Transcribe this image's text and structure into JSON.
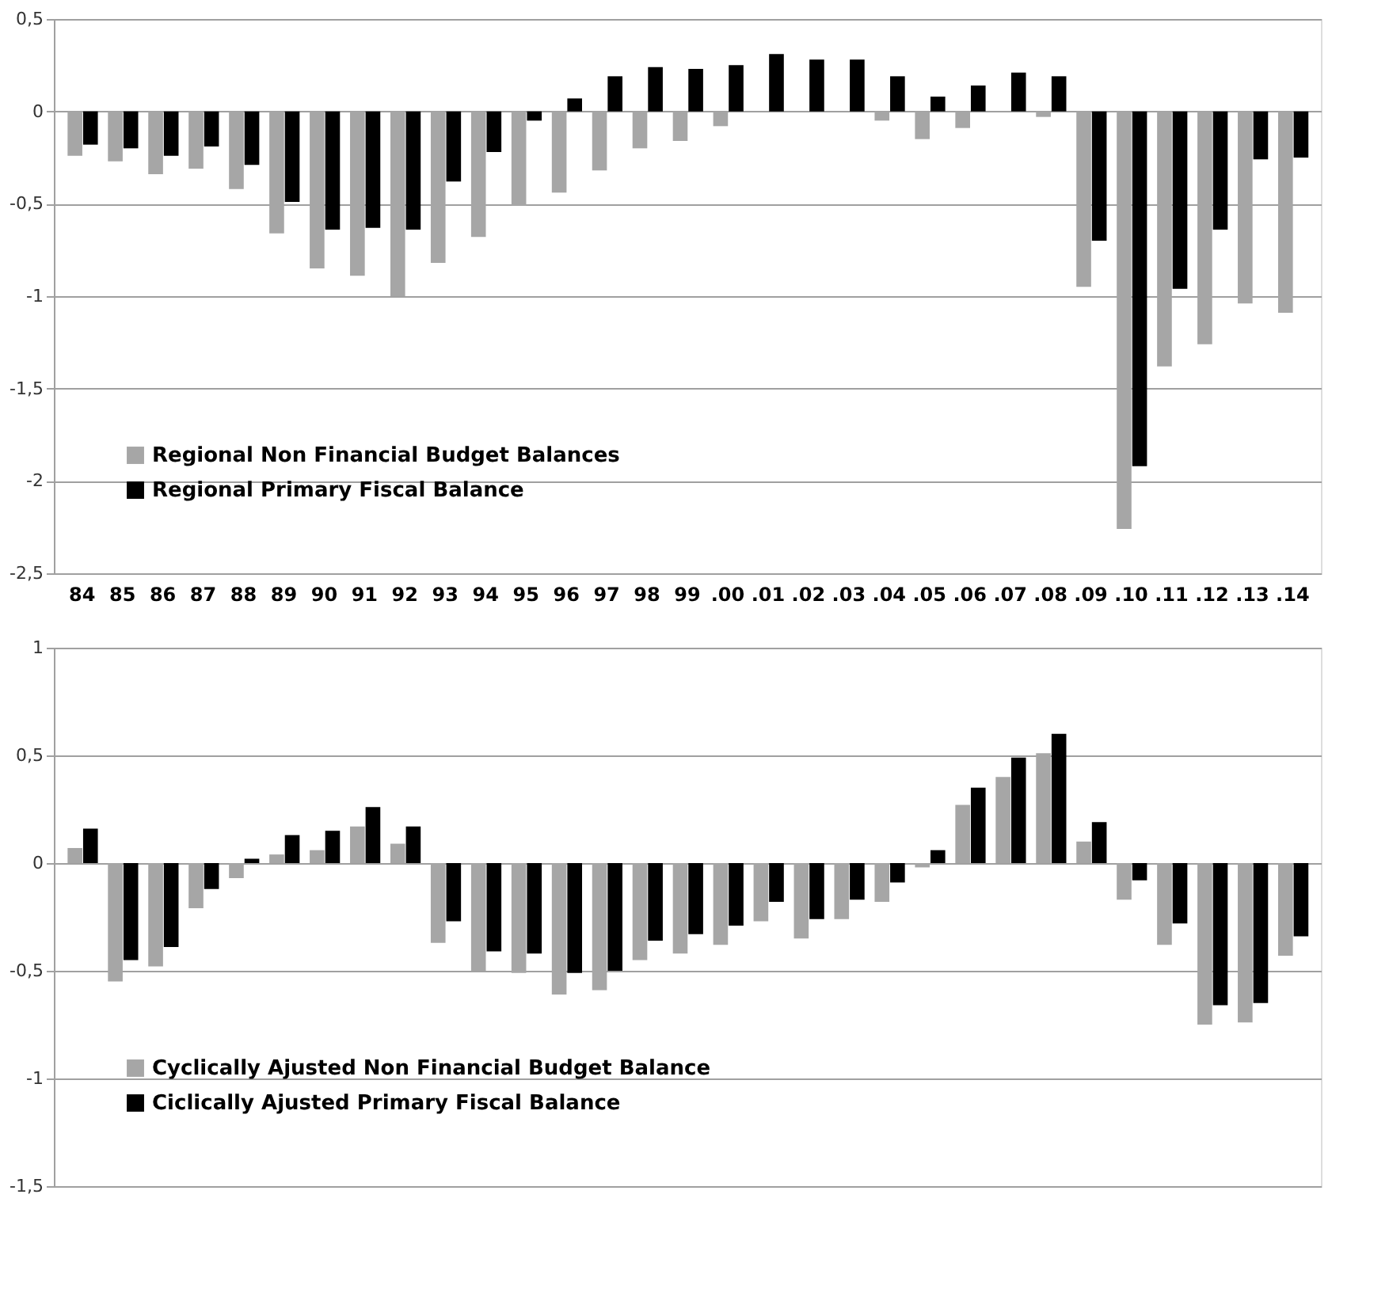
{
  "chart_data": [
    {
      "type": "bar",
      "categories": [
        "84",
        "85",
        "86",
        "87",
        "88",
        "89",
        "90",
        "91",
        "92",
        "93",
        "94",
        "95",
        "96",
        "97",
        "98",
        "99",
        ".00",
        ".01",
        ".02",
        ".03",
        ".04",
        ".05",
        ".06",
        ".07",
        ".08",
        ".09",
        ".10",
        ".11",
        ".12",
        ".13",
        ".14"
      ],
      "series": [
        {
          "name": "Regional Non Financial Budget Balances",
          "color": "#a6a6a6",
          "values": [
            -0.24,
            -0.27,
            -0.34,
            -0.31,
            -0.42,
            -0.66,
            -0.85,
            -0.89,
            -1.0,
            -0.82,
            -0.68,
            -0.51,
            -0.44,
            -0.32,
            -0.2,
            -0.16,
            -0.08,
            null,
            0,
            0,
            -0.05,
            -0.15,
            -0.09,
            null,
            -0.03,
            -0.95,
            -2.26,
            -1.38,
            -1.26,
            -1.04,
            -1.09
          ]
        },
        {
          "name": "Regional Primary Fiscal Balance",
          "color": "#000000",
          "values": [
            -0.18,
            -0.2,
            -0.24,
            -0.19,
            -0.29,
            -0.49,
            -0.64,
            -0.63,
            -0.64,
            -0.38,
            -0.22,
            -0.05,
            0.07,
            0.19,
            0.24,
            0.23,
            0.25,
            0.31,
            0.28,
            0.28,
            0.19,
            0.08,
            0.14,
            0.21,
            0.19,
            -0.7,
            -1.92,
            -0.96,
            -0.64,
            -0.26,
            -0.25
          ]
        }
      ],
      "ylim": [
        -2.5,
        0.5
      ],
      "yticks": [
        {
          "value": -2.5,
          "label": "-2,5"
        },
        -2,
        {
          "value": -1.5,
          "label": "-1,5"
        },
        -1,
        {
          "value": -0.5,
          "label": "-0,5"
        },
        0,
        {
          "value": 0.5,
          "label": "0,5"
        }
      ],
      "grid": "y",
      "legend": "bottom left"
    },
    {
      "type": "bar",
      "categories": [
        "84",
        "85",
        "86",
        "87",
        "88",
        "89",
        "90",
        "91",
        "92",
        "93",
        "94",
        "95",
        "96",
        "97",
        "98",
        "99",
        ".00",
        ".01",
        ".02",
        ".03",
        ".04",
        ".05",
        ".06",
        ".07",
        ".08",
        ".09",
        ".10",
        ".11",
        ".12",
        ".13",
        ".14"
      ],
      "series": [
        {
          "name": "Cyclically Ajusted Non Financial Budget Balance",
          "color": "#a6a6a6",
          "values": [
            0.07,
            -0.55,
            -0.48,
            -0.21,
            -0.07,
            0.04,
            0.06,
            0.17,
            0.09,
            -0.37,
            -0.5,
            -0.51,
            -0.61,
            -0.59,
            -0.45,
            -0.42,
            -0.38,
            -0.27,
            -0.35,
            -0.26,
            -0.18,
            -0.02,
            0.27,
            0.4,
            0.51,
            0.1,
            -0.17,
            -0.38,
            -0.75,
            -0.74,
            -0.43
          ]
        },
        {
          "name": "Ciclically Ajusted Primary Fiscal Balance",
          "color": "#000000",
          "values": [
            0.16,
            -0.45,
            -0.39,
            -0.12,
            0.02,
            0.13,
            0.15,
            0.26,
            0.17,
            -0.27,
            -0.41,
            -0.42,
            -0.51,
            -0.5,
            -0.36,
            -0.33,
            -0.29,
            -0.18,
            -0.26,
            -0.17,
            -0.09,
            0.06,
            0.35,
            0.49,
            0.6,
            0.19,
            -0.08,
            -0.28,
            -0.66,
            -0.65,
            -0.34
          ]
        }
      ],
      "ylim": [
        -1.5,
        1
      ],
      "yticks": [
        {
          "value": -1.5,
          "label": "-1,5"
        },
        -1,
        {
          "value": -0.5,
          "label": "-0,5"
        },
        0,
        {
          "value": 0.5,
          "label": "0,5"
        },
        1
      ],
      "grid": "y",
      "legend": "bottom left",
      "tick_labels": "y"
    }
  ]
}
